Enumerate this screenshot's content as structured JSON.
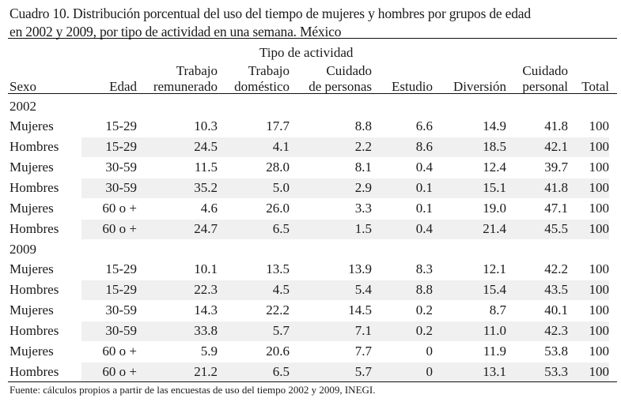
{
  "title": {
    "line1": "Cuadro 10. Distribución porcentual del uso del tiempo de mujeres y hombres por grupos de edad",
    "line2": "en 2002 y 2009, por tipo de actividad en una semana. México"
  },
  "header": {
    "group_label": "Tipo de actividad",
    "columns": [
      {
        "line1": "",
        "line2": "Sexo"
      },
      {
        "line1": "",
        "line2": "Edad"
      },
      {
        "line1": "Trabajo",
        "line2": "remunerado"
      },
      {
        "line1": "Trabajo",
        "line2": "doméstico"
      },
      {
        "line1": "Cuidado",
        "line2": "de personas"
      },
      {
        "line1": "",
        "line2": "Estudio"
      },
      {
        "line1": "",
        "line2": "Diversión"
      },
      {
        "line1": "Cuidado",
        "line2": "personal"
      },
      {
        "line1": "",
        "line2": "Total"
      }
    ]
  },
  "sections": [
    {
      "year": "2002",
      "rows": [
        [
          "Mujeres",
          "15-29",
          "10.3",
          "17.7",
          "8.8",
          "6.6",
          "14.9",
          "41.8",
          "100"
        ],
        [
          "Hombres",
          "15-29",
          "24.5",
          "4.1",
          "2.2",
          "8.6",
          "18.5",
          "42.1",
          "100"
        ],
        [
          "Mujeres",
          "30-59",
          "11.5",
          "28.0",
          "8.1",
          "0.4",
          "12.4",
          "39.7",
          "100"
        ],
        [
          "Hombres",
          "30-59",
          "35.2",
          "5.0",
          "2.9",
          "0.1",
          "15.1",
          "41.8",
          "100"
        ],
        [
          "Mujeres",
          "60 o +",
          "4.6",
          "26.0",
          "3.3",
          "0.1",
          "19.0",
          "47.1",
          "100"
        ],
        [
          "Hombres",
          "60 o +",
          "24.7",
          "6.5",
          "1.5",
          "0.4",
          "21.4",
          "45.5",
          "100"
        ]
      ]
    },
    {
      "year": "2009",
      "rows": [
        [
          "Mujeres",
          "15-29",
          "10.1",
          "13.5",
          "13.9",
          "8.3",
          "12.1",
          "42.2",
          "100"
        ],
        [
          "Hombres",
          "15-29",
          "22.3",
          "4.5",
          "5.4",
          "8.8",
          "15.4",
          "43.5",
          "100"
        ],
        [
          "Mujeres",
          "30-59",
          "14.3",
          "22.2",
          "14.5",
          "0.2",
          "8.7",
          "40.1",
          "100"
        ],
        [
          "Hombres",
          "30-59",
          "33.8",
          "5.7",
          "7.1",
          "0.2",
          "11.0",
          "42.3",
          "100"
        ],
        [
          "Mujeres",
          "60 o +",
          "5.9",
          "20.6",
          "7.7",
          "0",
          "11.9",
          "53.8",
          "100"
        ],
        [
          "Hombres",
          "60 o +",
          "21.2",
          "6.5",
          "5.7",
          "0",
          "13.1",
          "53.3",
          "100"
        ]
      ]
    }
  ],
  "footer": "Fuente: cálculos propios a partir de las encuestas de uso del tiempo 2002 y 2009, INEGI.",
  "colors": {
    "row_shade": "#f0f0f0",
    "text": "#1a1a1a"
  }
}
